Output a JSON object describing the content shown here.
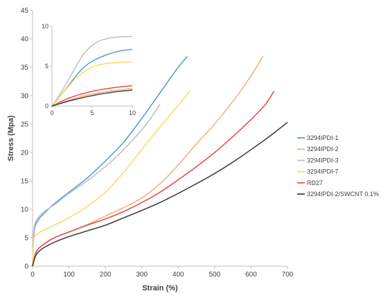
{
  "chart_data": [
    {
      "type": "line",
      "xlabel": "Strain (%)",
      "ylabel": "Stress (Mpa)",
      "xlim": [
        0,
        700
      ],
      "ylim": [
        0,
        45
      ],
      "x_ticks": [
        0,
        100,
        200,
        300,
        400,
        500,
        600,
        700
      ],
      "y_ticks": [
        0,
        5,
        10,
        15,
        20,
        25,
        30,
        35,
        40,
        45
      ],
      "grid": false,
      "legend_position": "right",
      "series": [
        {
          "name": "3294IPDI-1",
          "color": "#5B9BD5",
          "points": [
            [
              0,
              0
            ],
            [
              2,
              4
            ],
            [
              5,
              6.5
            ],
            [
              10,
              7.5
            ],
            [
              20,
              8.5
            ],
            [
              40,
              9.8
            ],
            [
              60,
              11
            ],
            [
              100,
              13
            ],
            [
              150,
              15.5
            ],
            [
              200,
              18.5
            ],
            [
              250,
              21.8
            ],
            [
              300,
              26
            ],
            [
              350,
              30.5
            ],
            [
              400,
              35
            ],
            [
              425,
              36.9
            ]
          ]
        },
        {
          "name": "3294IPDI-2",
          "color": "#F4B183",
          "points": [
            [
              0,
              0
            ],
            [
              10,
              2.5
            ],
            [
              30,
              3.8
            ],
            [
              60,
              5
            ],
            [
              100,
              6
            ],
            [
              150,
              7.3
            ],
            [
              200,
              8.8
            ],
            [
              250,
              10.3
            ],
            [
              300,
              12
            ],
            [
              350,
              14.5
            ],
            [
              400,
              17.8
            ],
            [
              450,
              21.5
            ],
            [
              500,
              25
            ],
            [
              550,
              29
            ],
            [
              600,
              33.5
            ],
            [
              633,
              37
            ]
          ]
        },
        {
          "name": "3294IPDI-3",
          "color": "#BFBFBF",
          "points": [
            [
              0,
              0
            ],
            [
              2,
              5
            ],
            [
              5,
              7
            ],
            [
              10,
              8
            ],
            [
              30,
              9.5
            ],
            [
              60,
              10.8
            ],
            [
              100,
              12.8
            ],
            [
              150,
              15
            ],
            [
              200,
              17.5
            ],
            [
              250,
              20.5
            ],
            [
              300,
              24
            ],
            [
              330,
              26.5
            ],
            [
              350,
              28.5
            ]
          ]
        },
        {
          "name": "3294IPDI-7",
          "color": "#FFD966",
          "points": [
            [
              0,
              0
            ],
            [
              3,
              4.5
            ],
            [
              10,
              5.5
            ],
            [
              30,
              6.3
            ],
            [
              60,
              7.2
            ],
            [
              100,
              8.5
            ],
            [
              150,
              10.5
            ],
            [
              200,
              13
            ],
            [
              250,
              16.5
            ],
            [
              300,
              20.5
            ],
            [
              350,
              24.5
            ],
            [
              400,
              28.3
            ],
            [
              432,
              30.8
            ]
          ]
        },
        {
          "name": "RD27",
          "color": "#E84C4C",
          "points": [
            [
              0,
              0
            ],
            [
              10,
              2.5
            ],
            [
              30,
              3.8
            ],
            [
              60,
              5
            ],
            [
              100,
              6
            ],
            [
              150,
              7.2
            ],
            [
              200,
              8.3
            ],
            [
              250,
              9.6
            ],
            [
              300,
              11.2
            ],
            [
              350,
              13
            ],
            [
              400,
              15.2
            ],
            [
              450,
              17.5
            ],
            [
              500,
              20
            ],
            [
              550,
              22.8
            ],
            [
              600,
              25.8
            ],
            [
              640,
              28.5
            ],
            [
              663,
              30.8
            ]
          ]
        },
        {
          "name": "3294IPDI-2/SWCNT 0.1%",
          "color": "#404040",
          "points": [
            [
              0,
              0
            ],
            [
              10,
              2
            ],
            [
              30,
              3.2
            ],
            [
              60,
              4.2
            ],
            [
              100,
              5.2
            ],
            [
              150,
              6.2
            ],
            [
              200,
              7.2
            ],
            [
              250,
              8.5
            ],
            [
              300,
              9.8
            ],
            [
              350,
              11.2
            ],
            [
              400,
              12.8
            ],
            [
              450,
              14.5
            ],
            [
              500,
              16.3
            ],
            [
              550,
              18.3
            ],
            [
              600,
              20.5
            ],
            [
              650,
              22.8
            ],
            [
              700,
              25.3
            ]
          ]
        }
      ]
    },
    {
      "type": "line",
      "title": "",
      "xlim": [
        0,
        10
      ],
      "ylim": [
        0,
        10
      ],
      "x_ticks": [
        0,
        5,
        10
      ],
      "y_ticks": [
        0,
        5,
        10
      ],
      "grid": false,
      "series": [
        {
          "color": "#5B9BD5",
          "points": [
            [
              0,
              0
            ],
            [
              1,
              1.2
            ],
            [
              2,
              2.5
            ],
            [
              3,
              3.8
            ],
            [
              4,
              4.9
            ],
            [
              5,
              5.6
            ],
            [
              6,
              6.1
            ],
            [
              7,
              6.5
            ],
            [
              8,
              6.8
            ],
            [
              9,
              7.0
            ],
            [
              10,
              7.1
            ]
          ]
        },
        {
          "color": "#BFBFBF",
          "points": [
            [
              0,
              0
            ],
            [
              1,
              1.5
            ],
            [
              2,
              3.2
            ],
            [
              3,
              5.0
            ],
            [
              4,
              6.6
            ],
            [
              5,
              7.6
            ],
            [
              6,
              8.2
            ],
            [
              7,
              8.5
            ],
            [
              8,
              8.65
            ],
            [
              9,
              8.7
            ],
            [
              10,
              8.72
            ]
          ]
        },
        {
          "color": "#FFD966",
          "points": [
            [
              0,
              0
            ],
            [
              1,
              1.2
            ],
            [
              2,
              2.4
            ],
            [
              3,
              3.5
            ],
            [
              4,
              4.3
            ],
            [
              5,
              4.9
            ],
            [
              6,
              5.2
            ],
            [
              7,
              5.35
            ],
            [
              8,
              5.45
            ],
            [
              9,
              5.5
            ],
            [
              10,
              5.55
            ]
          ]
        },
        {
          "color": "#E84C4C",
          "points": [
            [
              0,
              0
            ],
            [
              1,
              0.5
            ],
            [
              2,
              0.95
            ],
            [
              3,
              1.3
            ],
            [
              4,
              1.6
            ],
            [
              5,
              1.85
            ],
            [
              6,
              2.05
            ],
            [
              7,
              2.2
            ],
            [
              8,
              2.35
            ],
            [
              9,
              2.45
            ],
            [
              10,
              2.55
            ]
          ]
        },
        {
          "color": "#F4B183",
          "points": [
            [
              0,
              0
            ],
            [
              1,
              0.35
            ],
            [
              2,
              0.7
            ],
            [
              3,
              1.0
            ],
            [
              4,
              1.3
            ],
            [
              5,
              1.5
            ],
            [
              6,
              1.7
            ],
            [
              7,
              1.85
            ],
            [
              8,
              2.0
            ],
            [
              9,
              2.1
            ],
            [
              10,
              2.2
            ]
          ]
        },
        {
          "color": "#404040",
          "points": [
            [
              0,
              0
            ],
            [
              1,
              0.3
            ],
            [
              2,
              0.6
            ],
            [
              3,
              0.85
            ],
            [
              4,
              1.1
            ],
            [
              5,
              1.3
            ],
            [
              6,
              1.5
            ],
            [
              7,
              1.65
            ],
            [
              8,
              1.8
            ],
            [
              9,
              1.9
            ],
            [
              10,
              2.0
            ]
          ]
        }
      ]
    }
  ]
}
